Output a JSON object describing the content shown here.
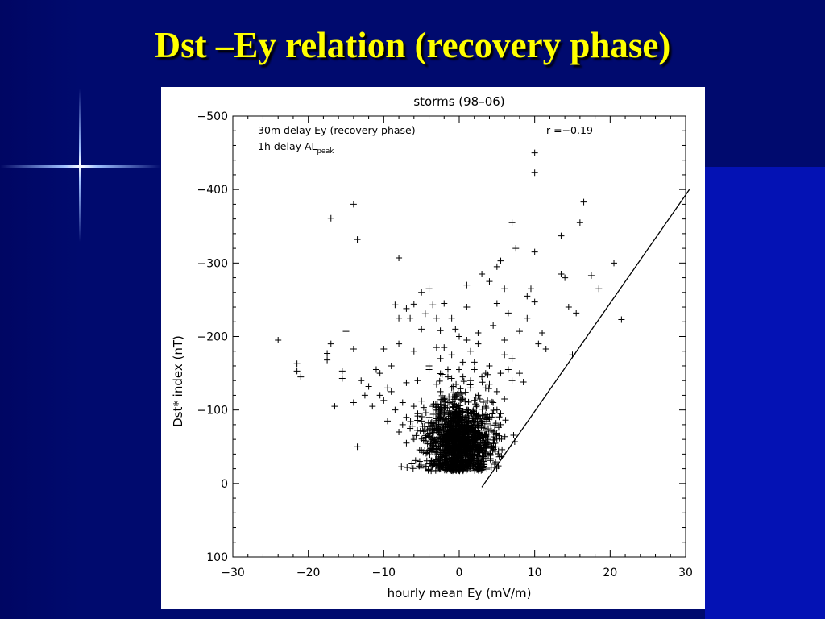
{
  "slide": {
    "title": "Dst –Ey relation (recovery phase)"
  },
  "colors": {
    "background": "#000a6e",
    "title": "#ffff00",
    "panel": "#ffffff",
    "marks": "#000000"
  },
  "chart_data": {
    "type": "scatter",
    "title": "storms (98–06)",
    "xlabel": "hourly mean Ey (mV/m)",
    "ylabel": "Dst* index (nT)",
    "xlim": [
      -30,
      30
    ],
    "ylim": [
      100,
      -500
    ],
    "x_ticks": [
      "−30",
      "−20",
      "−10",
      "0",
      "10",
      "20",
      "30"
    ],
    "x_tick_values": [
      -30,
      -20,
      -10,
      0,
      10,
      20,
      30
    ],
    "y_ticks": [
      "−500",
      "−400",
      "−300",
      "−200",
      "−100",
      "0",
      "100"
    ],
    "y_tick_values": [
      -500,
      -400,
      -300,
      -200,
      -100,
      0,
      100
    ],
    "marker": "+",
    "annotations": {
      "line1": "30m delay Ey (recovery phase)",
      "line2_main": "1h delay AL",
      "line2_sub": "peak",
      "r_label": "r =−0.19"
    },
    "reference_line": {
      "x": [
        3,
        30.5
      ],
      "y": [
        5,
        -400
      ]
    },
    "series": [
      {
        "points": [
          [
            -24,
            -195
          ],
          [
            -21.5,
            -163
          ],
          [
            -21.5,
            -153
          ],
          [
            -21,
            -145
          ],
          [
            -17,
            -361
          ],
          [
            -17,
            -190
          ],
          [
            -17.5,
            -177
          ],
          [
            -17.5,
            -168
          ],
          [
            -16.5,
            -105
          ],
          [
            -15.5,
            -153
          ],
          [
            -15.5,
            -143
          ],
          [
            -15,
            -207
          ],
          [
            -14,
            -380
          ],
          [
            -14,
            -183
          ],
          [
            -14,
            -110
          ],
          [
            -13.5,
            -332
          ],
          [
            -13.5,
            -50
          ],
          [
            -13,
            -140
          ],
          [
            -12.5,
            -120
          ],
          [
            -12,
            -132
          ],
          [
            -11.5,
            -105
          ],
          [
            -11,
            -155
          ],
          [
            -10.5,
            -150
          ],
          [
            -10,
            -113
          ],
          [
            -10,
            -183
          ],
          [
            -9.5,
            -130
          ],
          [
            -9,
            -160
          ],
          [
            -8.5,
            -243
          ],
          [
            -8,
            -307
          ],
          [
            -8,
            -190
          ],
          [
            -8,
            -225
          ],
          [
            -7.5,
            -110
          ],
          [
            -7,
            -137
          ],
          [
            -7,
            -238
          ],
          [
            -6.5,
            -225
          ],
          [
            -6,
            -244
          ],
          [
            -6,
            -180
          ],
          [
            -5.5,
            -140
          ],
          [
            -5,
            -260
          ],
          [
            -5,
            -210
          ],
          [
            -4.5,
            -231
          ],
          [
            -4,
            -265
          ],
          [
            -4,
            -155
          ],
          [
            -3.5,
            -243
          ],
          [
            -3,
            -225
          ],
          [
            -3,
            -185
          ],
          [
            -2.5,
            -208
          ],
          [
            -2,
            -245
          ],
          [
            -1.5,
            -155
          ],
          [
            -1,
            -225
          ],
          [
            -0.5,
            -210
          ],
          [
            0,
            -200
          ],
          [
            0.5,
            -145
          ],
          [
            1,
            -240
          ],
          [
            1,
            -270
          ],
          [
            1.5,
            -180
          ],
          [
            2,
            -165
          ],
          [
            2.5,
            -190
          ],
          [
            3,
            -285
          ],
          [
            3.5,
            -150
          ],
          [
            4,
            -275
          ],
          [
            4.5,
            -215
          ],
          [
            5,
            -295
          ],
          [
            5,
            -245
          ],
          [
            5.5,
            -303
          ],
          [
            6,
            -265
          ],
          [
            6,
            -195
          ],
          [
            6.5,
            -232
          ],
          [
            7,
            -355
          ],
          [
            7,
            -170
          ],
          [
            7.5,
            -320
          ],
          [
            8,
            -207
          ],
          [
            8.5,
            -138
          ],
          [
            9,
            -255
          ],
          [
            9,
            -225
          ],
          [
            9.5,
            -265
          ],
          [
            10,
            -450
          ],
          [
            10,
            -423
          ],
          [
            10,
            -315
          ],
          [
            10,
            -247
          ],
          [
            10.5,
            -190
          ],
          [
            11,
            -205
          ],
          [
            11.5,
            -183
          ],
          [
            13.5,
            -337
          ],
          [
            13.5,
            -285
          ],
          [
            14,
            -280
          ],
          [
            14.5,
            -240
          ],
          [
            15,
            -175
          ],
          [
            15.5,
            -232
          ],
          [
            16,
            -355
          ],
          [
            16.5,
            -383
          ],
          [
            17.5,
            -283
          ],
          [
            18.5,
            -265
          ],
          [
            20.5,
            -300
          ],
          [
            21.5,
            -223
          ],
          [
            -4,
            -90
          ],
          [
            -3.5,
            -105
          ],
          [
            -3,
            -75
          ],
          [
            -2.5,
            -125
          ],
          [
            -2,
            -95
          ],
          [
            -1.5,
            -110
          ],
          [
            -1,
            -130
          ],
          [
            -0.5,
            -85
          ],
          [
            0.5,
            -115
          ],
          [
            1,
            -100
          ],
          [
            1.5,
            -130
          ],
          [
            2,
            -95
          ],
          [
            2.5,
            -120
          ],
          [
            3,
            -85
          ],
          [
            3.5,
            -105
          ],
          [
            4,
            -135
          ],
          [
            4.5,
            -110
          ],
          [
            5,
            -125
          ],
          [
            5.5,
            -95
          ],
          [
            6,
            -115
          ],
          [
            -6,
            -105
          ],
          [
            -5.5,
            -95
          ],
          [
            -5,
            -85
          ],
          [
            -6.5,
            -75
          ],
          [
            -7,
            -90
          ],
          [
            -7.5,
            -80
          ],
          [
            -8,
            -70
          ],
          [
            -7,
            -55
          ],
          [
            -6,
            -60
          ],
          [
            -5,
            -45
          ],
          [
            -3.5,
            -50
          ],
          [
            -2.5,
            -40
          ],
          [
            -1.5,
            -30
          ],
          [
            -0.5,
            -25
          ],
          [
            1.5,
            -35
          ],
          [
            2.5,
            -45
          ],
          [
            3.5,
            -55
          ],
          [
            4.5,
            -70
          ],
          [
            5.5,
            -80
          ],
          [
            -4,
            -160
          ],
          [
            -2.5,
            -170
          ],
          [
            -1,
            -175
          ],
          [
            0.5,
            -165
          ],
          [
            2,
            -155
          ],
          [
            3,
            -145
          ],
          [
            4,
            -160
          ],
          [
            5.5,
            -150
          ],
          [
            6.5,
            -155
          ],
          [
            -2,
            -185
          ],
          [
            1,
            -195
          ],
          [
            2.5,
            -205
          ],
          [
            -1.5,
            -145
          ],
          [
            -3,
            -135
          ],
          [
            0,
            -155
          ],
          [
            1.5,
            -140
          ],
          [
            3.5,
            -130
          ],
          [
            7,
            -140
          ],
          [
            8,
            -150
          ],
          [
            6,
            -175
          ],
          [
            -9,
            -125
          ],
          [
            -8.5,
            -100
          ],
          [
            -9.5,
            -85
          ],
          [
            -10.5,
            -120
          ],
          [
            -4.5,
            -65
          ],
          [
            -3,
            -60
          ],
          [
            -2,
            -70
          ],
          [
            -1,
            -55
          ],
          [
            0,
            -45
          ],
          [
            1,
            -60
          ],
          [
            2,
            -50
          ],
          [
            3,
            -65
          ],
          [
            4,
            -90
          ],
          [
            5,
            -100
          ]
        ]
      }
    ],
    "dense_cluster": {
      "x_center": 0,
      "y_center": -55,
      "x_spread": 2.2,
      "y_spread": 28,
      "count": 1400
    }
  }
}
